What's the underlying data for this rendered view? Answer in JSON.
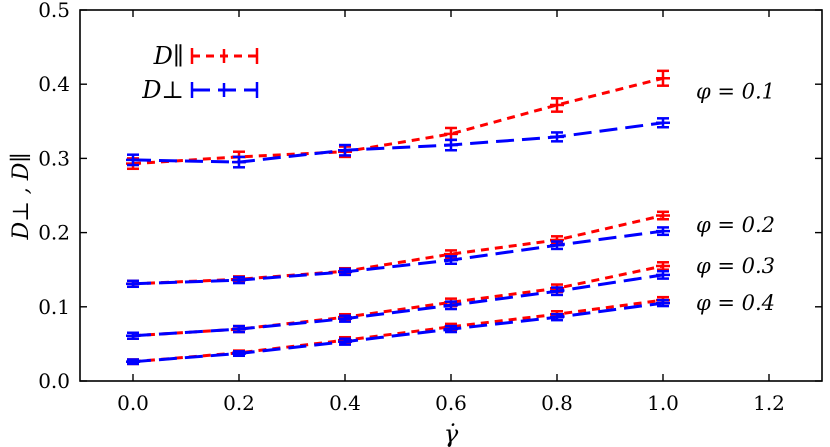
{
  "chart_data": {
    "type": "line",
    "xlabel": "γ̇",
    "ylabel": "D⊥ , D∥",
    "xlim": [
      -0.1,
      1.3
    ],
    "ylim": [
      0.0,
      0.5
    ],
    "xticks": [
      0.0,
      0.2,
      0.4,
      0.6,
      0.8,
      1.0,
      1.2
    ],
    "xtick_labels": [
      "0.0",
      "0.2",
      "0.4",
      "0.6",
      "0.8",
      "1.0",
      "1.2"
    ],
    "yticks": [
      0.0,
      0.1,
      0.2,
      0.3,
      0.4,
      0.5
    ],
    "ytick_labels": [
      "0.0",
      "0.1",
      "0.2",
      "0.3",
      "0.4",
      "0.5"
    ],
    "grid": false,
    "legend_position": "top-left",
    "legend": [
      {
        "label": "D∥",
        "color": "#ff0000"
      },
      {
        "label": "D⊥",
        "color": "#0000ff"
      }
    ],
    "x": [
      0.0,
      0.2,
      0.4,
      0.6,
      0.8,
      1.0
    ],
    "annotations": [
      "φ = 0.1",
      "φ = 0.2",
      "φ = 0.3",
      "φ = 0.4"
    ],
    "series": [
      {
        "group": "φ = 0.1",
        "quantity": "D∥",
        "color": "#ff0000",
        "values": [
          0.293,
          0.302,
          0.309,
          0.333,
          0.372,
          0.408
        ],
        "errors": [
          0.007,
          0.007,
          0.007,
          0.008,
          0.009,
          0.01
        ]
      },
      {
        "group": "φ = 0.1",
        "quantity": "D⊥",
        "color": "#0000ff",
        "values": [
          0.298,
          0.295,
          0.311,
          0.318,
          0.329,
          0.348
        ],
        "errors": [
          0.007,
          0.007,
          0.007,
          0.007,
          0.006,
          0.006
        ]
      },
      {
        "group": "φ = 0.2",
        "quantity": "D∥",
        "color": "#ff0000",
        "values": [
          0.131,
          0.137,
          0.148,
          0.171,
          0.19,
          0.223
        ],
        "errors": [
          0.004,
          0.004,
          0.004,
          0.005,
          0.005,
          0.005
        ]
      },
      {
        "group": "φ = 0.2",
        "quantity": "D⊥",
        "color": "#0000ff",
        "values": [
          0.131,
          0.136,
          0.147,
          0.163,
          0.183,
          0.202
        ],
        "errors": [
          0.004,
          0.004,
          0.004,
          0.005,
          0.005,
          0.005
        ]
      },
      {
        "group": "φ = 0.3",
        "quantity": "D∥",
        "color": "#ff0000",
        "values": [
          0.061,
          0.07,
          0.086,
          0.106,
          0.125,
          0.155
        ],
        "errors": [
          0.004,
          0.004,
          0.004,
          0.005,
          0.005,
          0.005
        ]
      },
      {
        "group": "φ = 0.3",
        "quantity": "D⊥",
        "color": "#0000ff",
        "values": [
          0.061,
          0.07,
          0.084,
          0.102,
          0.121,
          0.143
        ],
        "errors": [
          0.004,
          0.004,
          0.004,
          0.005,
          0.005,
          0.005
        ]
      },
      {
        "group": "φ = 0.4",
        "quantity": "D∥",
        "color": "#ff0000",
        "values": [
          0.026,
          0.038,
          0.055,
          0.073,
          0.09,
          0.109
        ],
        "errors": [
          0.003,
          0.003,
          0.004,
          0.004,
          0.004,
          0.004
        ]
      },
      {
        "group": "φ = 0.4",
        "quantity": "D⊥",
        "color": "#0000ff",
        "values": [
          0.026,
          0.037,
          0.053,
          0.07,
          0.086,
          0.105
        ],
        "errors": [
          0.003,
          0.003,
          0.004,
          0.004,
          0.004,
          0.004
        ]
      }
    ]
  }
}
